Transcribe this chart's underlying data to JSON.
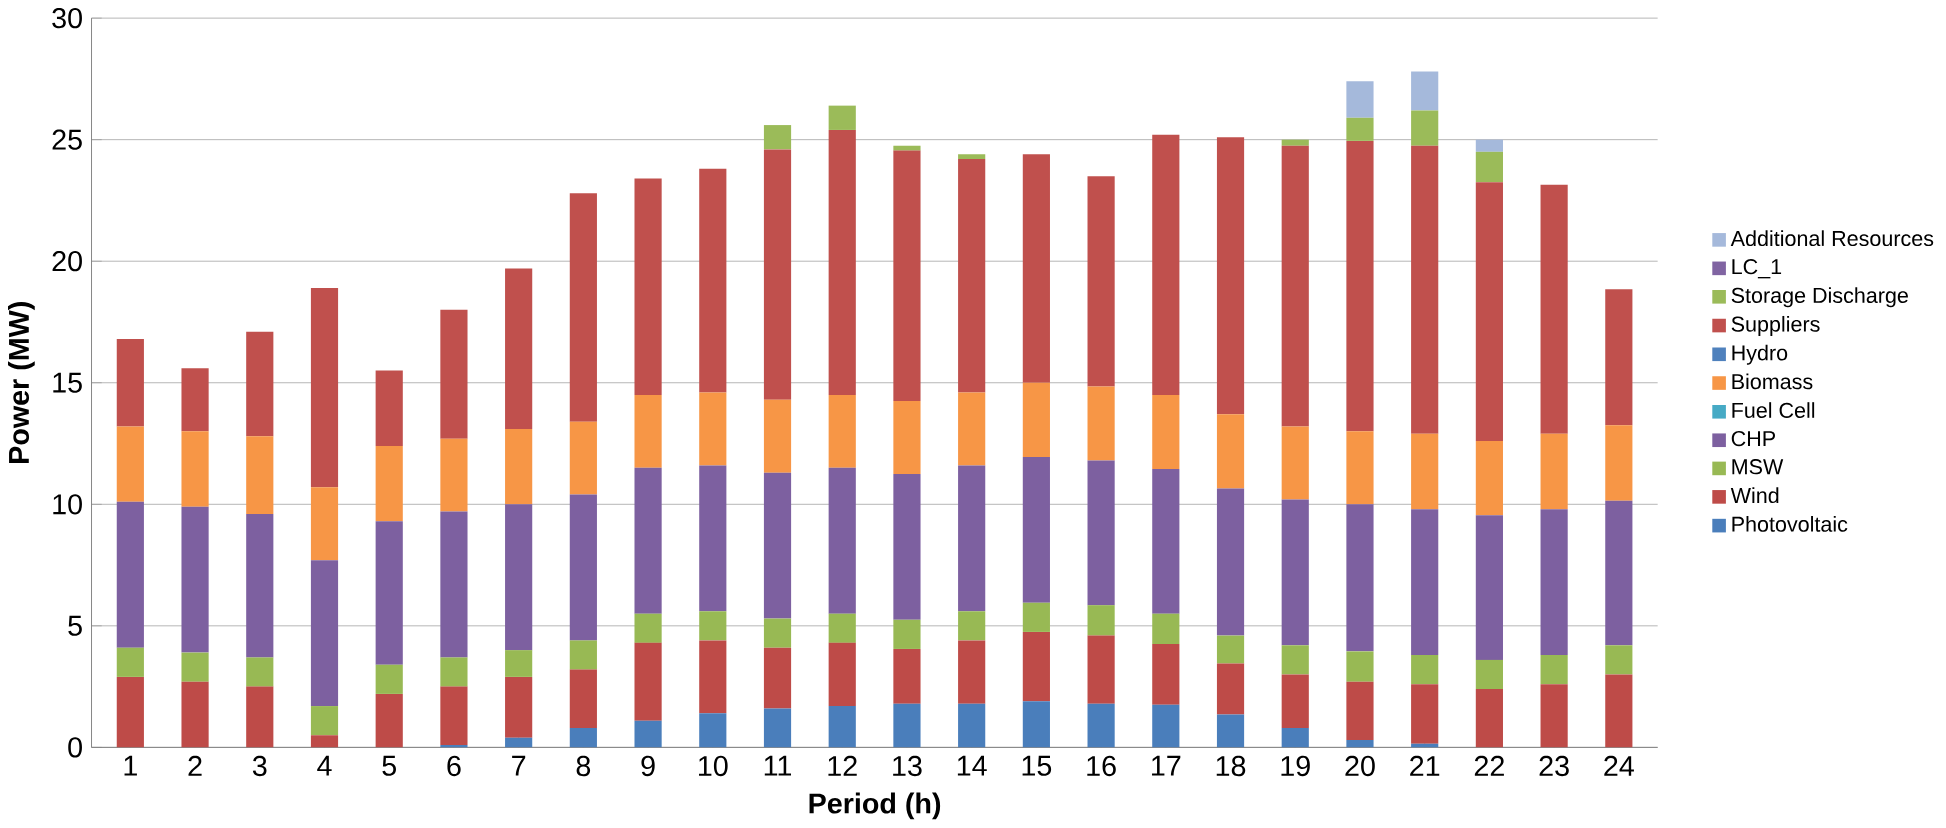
{
  "chart_data": {
    "type": "bar",
    "stacked": true,
    "xlabel": "Period (h)",
    "ylabel": "Power (MW)",
    "categories": [
      "1",
      "2",
      "3",
      "4",
      "5",
      "6",
      "7",
      "8",
      "9",
      "10",
      "11",
      "12",
      "13",
      "14",
      "15",
      "16",
      "17",
      "18",
      "19",
      "20",
      "21",
      "22",
      "23",
      "24"
    ],
    "ylim": [
      0,
      30
    ],
    "yticks": [
      0,
      5,
      10,
      15,
      20,
      25,
      30
    ],
    "grid": "y",
    "legend": "right",
    "series": [
      {
        "name": "Photovoltaic",
        "color": "#4a7ebb",
        "values": [
          0,
          0,
          0,
          0,
          0,
          0.1,
          0.4,
          0.8,
          1.1,
          1.4,
          1.6,
          1.7,
          1.8,
          1.8,
          1.9,
          1.8,
          1.75,
          1.35,
          0.8,
          0.3,
          0.15,
          0,
          0,
          0
        ]
      },
      {
        "name": "Wind",
        "color": "#be4b48",
        "values": [
          2.9,
          2.7,
          2.5,
          0.5,
          2.2,
          2.4,
          2.5,
          2.4,
          3.2,
          3.0,
          2.5,
          2.6,
          2.25,
          2.6,
          2.85,
          2.8,
          2.5,
          2.1,
          2.2,
          2.4,
          2.45,
          2.4,
          2.6,
          3.0
        ]
      },
      {
        "name": "MSW",
        "color": "#98b954",
        "values": [
          1.2,
          1.2,
          1.2,
          1.2,
          1.2,
          1.2,
          1.1,
          1.2,
          1.2,
          1.2,
          1.2,
          1.2,
          1.2,
          1.2,
          1.2,
          1.25,
          1.25,
          1.15,
          1.2,
          1.25,
          1.2,
          1.2,
          1.2,
          1.2
        ]
      },
      {
        "name": "CHP",
        "color": "#7d60a0",
        "values": [
          6.0,
          6.0,
          5.9,
          6.0,
          5.9,
          6.0,
          6.0,
          6.0,
          6.0,
          6.0,
          6.0,
          6.0,
          6.0,
          6.0,
          6.0,
          5.95,
          5.95,
          6.05,
          6.0,
          6.05,
          6.0,
          5.95,
          6.0,
          5.95
        ]
      },
      {
        "name": "Fuel Cell",
        "color": "#46aac5",
        "values": [
          0,
          0,
          0,
          0,
          0,
          0,
          0,
          0,
          0,
          0,
          0,
          0,
          0,
          0,
          0,
          0,
          0,
          0,
          0,
          0,
          0,
          0,
          0,
          0
        ]
      },
      {
        "name": "Biomass",
        "color": "#f79646",
        "values": [
          3.1,
          3.1,
          3.2,
          3.0,
          3.1,
          3.0,
          3.1,
          3.0,
          3.0,
          3.0,
          3.0,
          3.0,
          3.0,
          3.0,
          3.05,
          3.05,
          3.05,
          3.05,
          3.0,
          3.0,
          3.1,
          3.05,
          3.1,
          3.1
        ]
      },
      {
        "name": "Hydro",
        "color": "#4f81bd",
        "values": [
          0,
          0,
          0,
          0,
          0,
          0,
          0,
          0,
          0,
          0,
          0,
          0,
          0,
          0,
          0,
          0,
          0,
          0,
          0,
          0,
          0,
          0,
          0,
          0
        ]
      },
      {
        "name": "Suppliers",
        "color": "#c0504d",
        "values": [
          3.6,
          2.6,
          4.3,
          8.2,
          3.1,
          5.3,
          6.6,
          9.4,
          8.9,
          9.2,
          10.3,
          10.9,
          10.3,
          9.6,
          9.4,
          8.65,
          10.7,
          11.4,
          11.55,
          11.95,
          11.85,
          10.65,
          10.25,
          5.6
        ]
      },
      {
        "name": "Storage Discharge",
        "color": "#9bbb59",
        "values": [
          0,
          0,
          0,
          0,
          0,
          0,
          0,
          0,
          0,
          0,
          1.0,
          1.0,
          0.2,
          0.2,
          0,
          0,
          0,
          0,
          0.25,
          0.95,
          1.45,
          1.25,
          0,
          0
        ]
      },
      {
        "name": "LC_1",
        "color": "#8064a2",
        "values": [
          0,
          0,
          0,
          0,
          0,
          0,
          0,
          0,
          0,
          0,
          0,
          0,
          0,
          0,
          0,
          0,
          0,
          0,
          0,
          0,
          0,
          0,
          0,
          0
        ]
      },
      {
        "name": "Additional Resources",
        "color": "#a5b9db",
        "values": [
          0,
          0,
          0,
          0,
          0,
          0,
          0,
          0,
          0,
          0,
          0,
          0,
          0,
          0,
          0,
          0,
          0,
          0,
          0,
          1.5,
          1.6,
          0.5,
          0,
          0
        ]
      }
    ]
  }
}
